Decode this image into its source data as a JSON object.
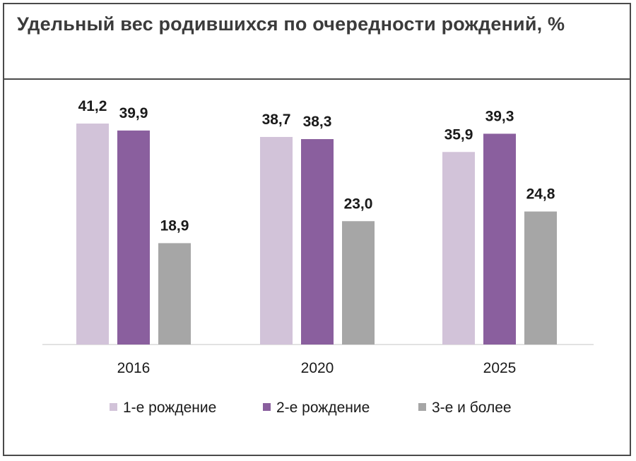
{
  "chart_data": {
    "type": "bar",
    "title": "Удельный вес родившихся по очередности рождений, %",
    "categories": [
      "2016",
      "2020",
      "2025"
    ],
    "series": [
      {
        "name": "1-е рождение",
        "values": [
          41.2,
          38.7,
          35.9
        ],
        "labels": [
          "41,2",
          "38,7",
          "35,9"
        ],
        "color": "#d2c3d9"
      },
      {
        "name": "2-е рождение",
        "values": [
          39.9,
          38.3,
          39.3
        ],
        "labels": [
          "39,9",
          "38,3",
          "39,3"
        ],
        "color": "#8a5f9e"
      },
      {
        "name": "3-е и более",
        "values": [
          18.9,
          23.0,
          24.8
        ],
        "labels": [
          "18,9",
          "23,0",
          "24,8"
        ],
        "color": "#a6a6a6"
      }
    ],
    "ylim": [
      0,
      41.2
    ],
    "grid": false,
    "legend": "bottom"
  }
}
